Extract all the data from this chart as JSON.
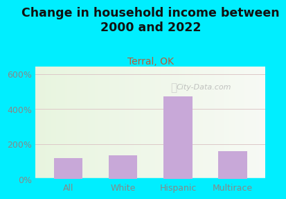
{
  "title": "Change in household income between\n2000 and 2022",
  "subtitle": "Terral, OK",
  "categories": [
    "All",
    "White",
    "Hispanic",
    "Multirace"
  ],
  "values": [
    120,
    138,
    470,
    158
  ],
  "bar_color": "#c8a8d8",
  "title_fontsize": 12.5,
  "subtitle_fontsize": 10,
  "subtitle_color": "#b85c38",
  "title_color": "#111111",
  "bg_outer": "#00eeff",
  "yticks": [
    0,
    200,
    400,
    600
  ],
  "ylim": [
    0,
    640
  ],
  "watermark": "City-Data.com",
  "grid_color": "#ddc8c8",
  "tick_color": "#888888",
  "tick_fontsize": 9,
  "xlabel_fontsize": 9
}
